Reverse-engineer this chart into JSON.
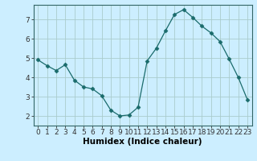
{
  "x": [
    0,
    1,
    2,
    3,
    4,
    5,
    6,
    7,
    8,
    9,
    10,
    11,
    12,
    13,
    14,
    15,
    16,
    17,
    18,
    19,
    20,
    21,
    22,
    23
  ],
  "y": [
    4.9,
    4.6,
    4.35,
    4.65,
    3.85,
    3.5,
    3.4,
    3.05,
    2.3,
    2.0,
    2.05,
    2.45,
    4.85,
    5.5,
    6.4,
    7.25,
    7.5,
    7.1,
    6.65,
    6.3,
    5.85,
    4.95,
    4.0,
    2.85
  ],
  "line_color": "#1a6b6b",
  "marker": "D",
  "marker_size": 2.5,
  "bg_color": "#cceeff",
  "grid_color": "#aacccc",
  "xlabel": "Humidex (Indice chaleur)",
  "xlabel_fontsize": 7.5,
  "ylim": [
    1.5,
    7.75
  ],
  "xlim": [
    -0.5,
    23.5
  ],
  "yticks": [
    2,
    3,
    4,
    5,
    6,
    7
  ],
  "xticks": [
    0,
    1,
    2,
    3,
    4,
    5,
    6,
    7,
    8,
    9,
    10,
    11,
    12,
    13,
    14,
    15,
    16,
    17,
    18,
    19,
    20,
    21,
    22,
    23
  ],
  "tick_fontsize": 6.5
}
